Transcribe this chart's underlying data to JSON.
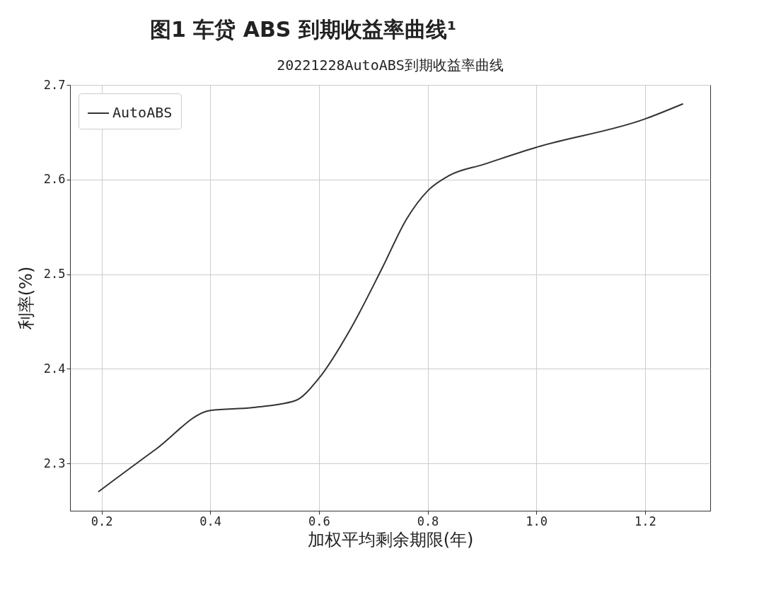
{
  "chart_data": {
    "type": "line",
    "title": "图1 车贷 ABS 到期收益率曲线¹",
    "subtitle": "20221228AutoABS到期收益率曲线",
    "xlabel": "加权平均剩余期限(年)",
    "ylabel": "利率(%)",
    "series": [
      {
        "name": "AutoABS",
        "color": "#333333",
        "x": [
          0.194,
          0.3,
          0.4,
          0.477,
          0.555,
          0.6,
          0.658,
          0.716,
          0.761,
          0.8,
          0.839,
          0.903,
          1.0,
          1.2,
          1.27
        ],
        "values": [
          2.27,
          2.315,
          2.356,
          2.359,
          2.366,
          2.39,
          2.442,
          2.506,
          2.558,
          2.588,
          2.604,
          2.616,
          2.634,
          2.664,
          2.68
        ]
      }
    ],
    "xlim": [
      0.142,
      1.32
    ],
    "ylim": [
      2.25,
      2.7
    ],
    "xticks": [
      0.2,
      0.4,
      0.6,
      0.8,
      {
        "value": 1.0,
        "label": "1.0"
      },
      1.2
    ],
    "yticks": [
      2.3,
      2.4,
      2.5,
      2.6,
      2.7
    ],
    "grid": true,
    "legend": "top left",
    "marker": "none",
    "line_style": "solid"
  }
}
